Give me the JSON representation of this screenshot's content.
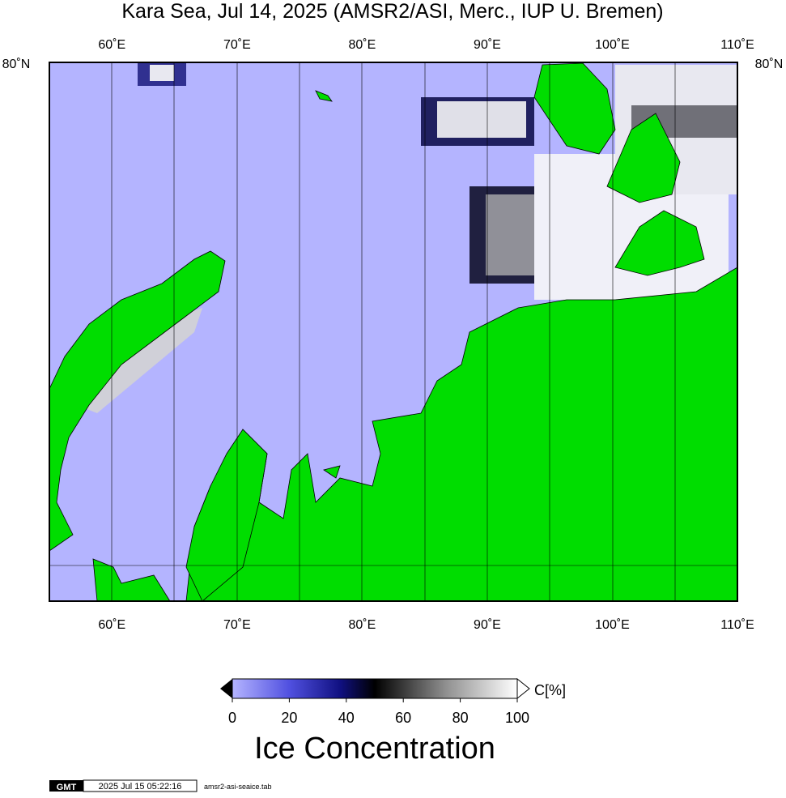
{
  "title": "Kara Sea, Jul 14, 2025 (AMSR2/ASI, Merc., IUP U. Bremen)",
  "map": {
    "lon_labels": [
      "60˚E",
      "70˚E",
      "80˚E",
      "90˚E",
      "100˚E",
      "110˚E"
    ],
    "lat_label": "80˚N"
  },
  "colorbar": {
    "ticks": [
      "0",
      "20",
      "40",
      "60",
      "80",
      "100"
    ],
    "unit": "C[%]",
    "title": "Ice Concentration"
  },
  "footer": {
    "logo": "GMT",
    "timestamp": "2025 Jul 15 05:22:16",
    "file": "amsr2-asi-seaice.tab"
  }
}
